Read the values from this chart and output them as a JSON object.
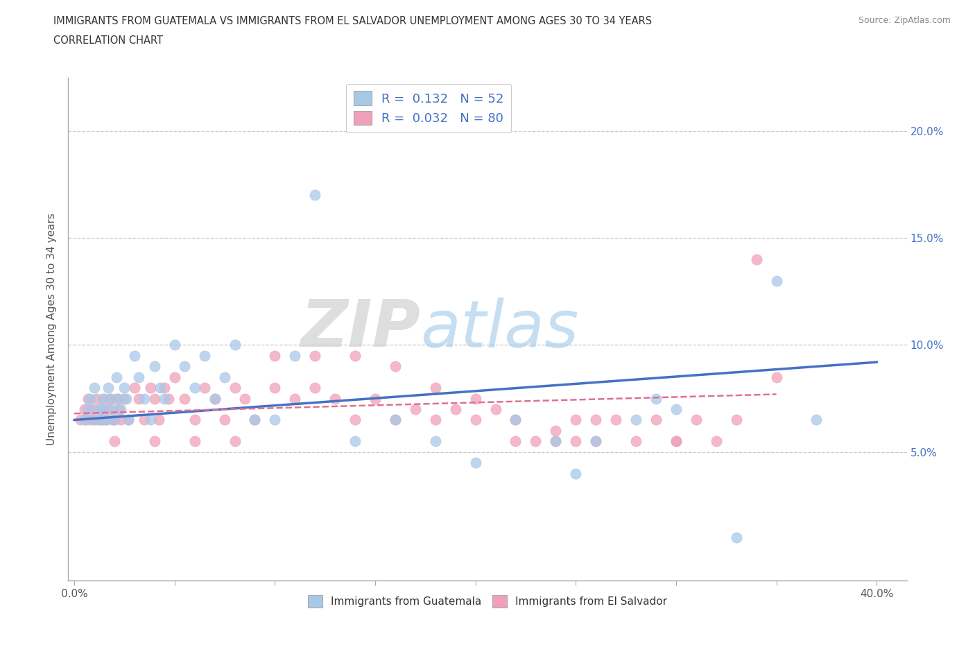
{
  "title_line1": "IMMIGRANTS FROM GUATEMALA VS IMMIGRANTS FROM EL SALVADOR UNEMPLOYMENT AMONG AGES 30 TO 34 YEARS",
  "title_line2": "CORRELATION CHART",
  "source": "Source: ZipAtlas.com",
  "ylabel": "Unemployment Among Ages 30 to 34 years",
  "xlim": [
    -0.003,
    0.415
  ],
  "ylim": [
    -0.01,
    0.225
  ],
  "r_guatemala": 0.132,
  "n_guatemala": 52,
  "r_salvador": 0.032,
  "n_salvador": 80,
  "color_guatemala": "#a8c8e8",
  "color_salvador": "#f0a0b8",
  "color_line_guatemala": "#4472c4",
  "color_line_salvador": "#e07090",
  "watermark_zip": "ZIP",
  "watermark_atlas": "atlas",
  "guat_x": [
    0.005,
    0.007,
    0.008,
    0.01,
    0.01,
    0.012,
    0.013,
    0.014,
    0.015,
    0.016,
    0.017,
    0.018,
    0.019,
    0.02,
    0.021,
    0.022,
    0.023,
    0.025,
    0.026,
    0.027,
    0.03,
    0.032,
    0.035,
    0.038,
    0.04,
    0.043,
    0.045,
    0.05,
    0.055,
    0.06,
    0.065,
    0.07,
    0.075,
    0.08,
    0.09,
    0.1,
    0.11,
    0.12,
    0.14,
    0.16,
    0.18,
    0.2,
    0.22,
    0.25,
    0.3,
    0.33,
    0.35,
    0.37,
    0.24,
    0.26,
    0.28,
    0.29
  ],
  "guat_y": [
    0.065,
    0.07,
    0.075,
    0.065,
    0.08,
    0.07,
    0.065,
    0.075,
    0.07,
    0.065,
    0.08,
    0.075,
    0.07,
    0.065,
    0.085,
    0.075,
    0.07,
    0.08,
    0.075,
    0.065,
    0.095,
    0.085,
    0.075,
    0.065,
    0.09,
    0.08,
    0.075,
    0.1,
    0.09,
    0.08,
    0.095,
    0.075,
    0.085,
    0.1,
    0.065,
    0.065,
    0.095,
    0.17,
    0.055,
    0.065,
    0.055,
    0.045,
    0.065,
    0.04,
    0.07,
    0.01,
    0.13,
    0.065,
    0.055,
    0.055,
    0.065,
    0.075
  ],
  "salv_x": [
    0.003,
    0.005,
    0.006,
    0.007,
    0.008,
    0.009,
    0.01,
    0.011,
    0.012,
    0.013,
    0.014,
    0.015,
    0.016,
    0.017,
    0.018,
    0.019,
    0.02,
    0.021,
    0.022,
    0.023,
    0.025,
    0.027,
    0.03,
    0.032,
    0.035,
    0.038,
    0.04,
    0.042,
    0.045,
    0.047,
    0.05,
    0.055,
    0.06,
    0.065,
    0.07,
    0.075,
    0.08,
    0.085,
    0.09,
    0.1,
    0.11,
    0.12,
    0.13,
    0.14,
    0.15,
    0.16,
    0.17,
    0.18,
    0.19,
    0.2,
    0.21,
    0.22,
    0.23,
    0.24,
    0.25,
    0.26,
    0.27,
    0.28,
    0.29,
    0.3,
    0.31,
    0.32,
    0.33,
    0.34,
    0.35,
    0.24,
    0.26,
    0.22,
    0.2,
    0.18,
    0.16,
    0.14,
    0.12,
    0.1,
    0.08,
    0.06,
    0.04,
    0.02,
    0.25,
    0.3
  ],
  "salv_y": [
    0.065,
    0.07,
    0.065,
    0.075,
    0.065,
    0.07,
    0.065,
    0.075,
    0.065,
    0.07,
    0.065,
    0.075,
    0.065,
    0.07,
    0.075,
    0.065,
    0.065,
    0.075,
    0.07,
    0.065,
    0.075,
    0.065,
    0.08,
    0.075,
    0.065,
    0.08,
    0.075,
    0.065,
    0.08,
    0.075,
    0.085,
    0.075,
    0.065,
    0.08,
    0.075,
    0.065,
    0.08,
    0.075,
    0.065,
    0.08,
    0.075,
    0.08,
    0.075,
    0.065,
    0.075,
    0.065,
    0.07,
    0.065,
    0.07,
    0.065,
    0.07,
    0.065,
    0.055,
    0.06,
    0.065,
    0.055,
    0.065,
    0.055,
    0.065,
    0.055,
    0.065,
    0.055,
    0.065,
    0.14,
    0.085,
    0.055,
    0.065,
    0.055,
    0.075,
    0.08,
    0.09,
    0.095,
    0.095,
    0.095,
    0.055,
    0.055,
    0.055,
    0.055,
    0.055,
    0.055
  ],
  "line_guat_x0": 0.0,
  "line_guat_x1": 0.4,
  "line_guat_y0": 0.065,
  "line_guat_y1": 0.092,
  "line_salv_x0": 0.0,
  "line_salv_x1": 0.35,
  "line_salv_y0": 0.068,
  "line_salv_y1": 0.077
}
